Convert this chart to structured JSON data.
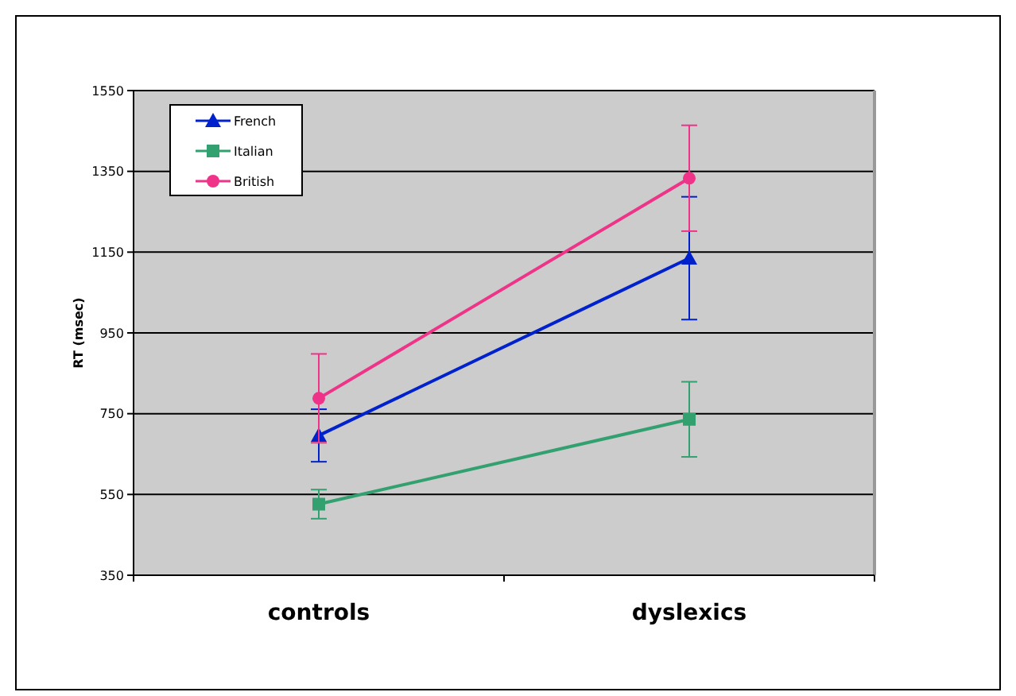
{
  "chart_data": {
    "type": "line",
    "ylabel": "RT (msec)",
    "categories": [
      "controls",
      "dyslexics"
    ],
    "series": [
      {
        "name": "French",
        "color": "#0022cc",
        "marker": "triangle",
        "values": [
          696,
          1135
        ],
        "errors": [
          65,
          152
        ]
      },
      {
        "name": "Italian",
        "color": "#33a070",
        "marker": "square",
        "values": [
          526,
          736
        ],
        "errors": [
          36,
          93
        ]
      },
      {
        "name": "British",
        "color": "#ee3388",
        "marker": "circle",
        "values": [
          788,
          1333
        ],
        "errors": [
          110,
          131
        ]
      }
    ],
    "ylim": [
      350,
      1550
    ],
    "yticks": [
      350,
      550,
      750,
      950,
      1150,
      1350,
      1550
    ],
    "grid": "y",
    "legend": "top left"
  }
}
